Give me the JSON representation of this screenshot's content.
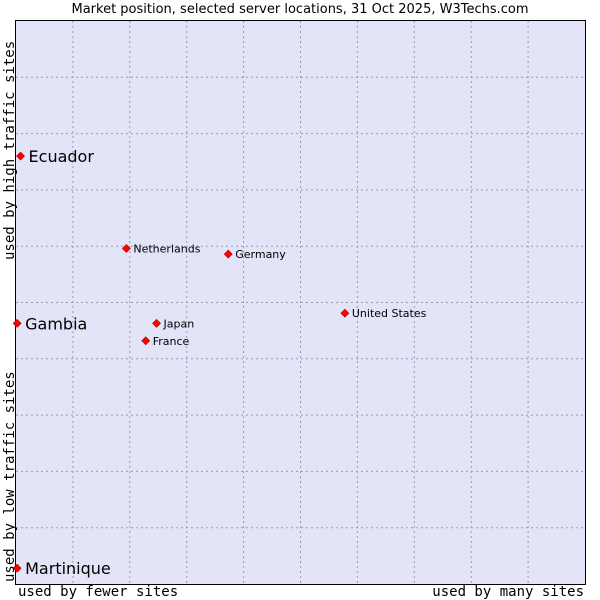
{
  "chart_data": {
    "type": "scatter",
    "title": "Market position, selected server locations, 31 Oct 2025, W3Techs.com",
    "xlabel_left": "used by fewer sites",
    "xlabel_right": "used by many sites",
    "ylabel_top": "used by high traffic sites",
    "ylabel_bottom": "used by low traffic sites",
    "xlim": [
      0,
      100
    ],
    "ylim": [
      0,
      100
    ],
    "grid": true,
    "gridlines": 10,
    "marker_color": "#ff0000",
    "points": [
      {
        "label": "Ecuador",
        "x": 0.8,
        "y": 76.0,
        "highlight": true
      },
      {
        "label": "Gambia",
        "x": 0.2,
        "y": 46.3,
        "highlight": true
      },
      {
        "label": "Martinique",
        "x": 0.2,
        "y": 2.8,
        "highlight": true
      },
      {
        "label": "Netherlands",
        "x": 19.4,
        "y": 59.6,
        "highlight": false
      },
      {
        "label": "Germany",
        "x": 37.3,
        "y": 58.6,
        "highlight": false
      },
      {
        "label": "United States",
        "x": 57.8,
        "y": 48.1,
        "highlight": false
      },
      {
        "label": "Japan",
        "x": 24.7,
        "y": 46.3,
        "highlight": false
      },
      {
        "label": "France",
        "x": 22.8,
        "y": 43.2,
        "highlight": false
      }
    ]
  }
}
